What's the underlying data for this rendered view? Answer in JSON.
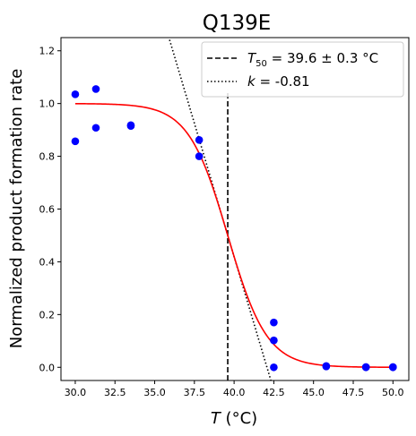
{
  "chart_data": {
    "type": "scatter",
    "title": "Q139E",
    "xlabel": {
      "var": "T",
      "unit": " (°C)"
    },
    "ylabel": "Normalized product formation rate",
    "xlim": [
      29.1,
      51.0
    ],
    "ylim": [
      -0.05,
      1.25
    ],
    "xticks": [
      30.0,
      32.5,
      35.0,
      37.5,
      40.0,
      42.5,
      45.0,
      47.5,
      50.0
    ],
    "xtick_labels": [
      "30.0",
      "32.5",
      "35.0",
      "37.5",
      "40.0",
      "42.5",
      "45.0",
      "47.5",
      "50.0"
    ],
    "yticks": [
      0.0,
      0.2,
      0.4,
      0.6,
      0.8,
      1.0,
      1.2
    ],
    "ytick_labels": [
      "0.0",
      "0.2",
      "0.4",
      "0.6",
      "0.8",
      "1.0",
      "1.2"
    ],
    "points": [
      {
        "x": 30.0,
        "y": 1.035
      },
      {
        "x": 30.0,
        "y": 0.857
      },
      {
        "x": 31.3,
        "y": 1.055
      },
      {
        "x": 31.3,
        "y": 0.908
      },
      {
        "x": 33.5,
        "y": 0.918
      },
      {
        "x": 33.5,
        "y": 0.915
      },
      {
        "x": 37.8,
        "y": 0.862
      },
      {
        "x": 37.8,
        "y": 0.8
      },
      {
        "x": 42.5,
        "y": 0.17
      },
      {
        "x": 42.5,
        "y": 0.102
      },
      {
        "x": 42.5,
        "y": 0.0
      },
      {
        "x": 45.8,
        "y": 0.005
      },
      {
        "x": 45.8,
        "y": 0.003
      },
      {
        "x": 48.3,
        "y": 0.001
      },
      {
        "x": 48.3,
        "y": 0.0
      },
      {
        "x": 50.0,
        "y": 0.0
      },
      {
        "x": 50.0,
        "y": 0.001
      }
    ],
    "point_color": "#0000ff",
    "fit": {
      "model": "sigmoid",
      "t50": 39.6,
      "k": -0.81,
      "color": "#ff0000"
    },
    "t50_line": {
      "x": 39.6,
      "y_top": 1.05
    },
    "tangent": {
      "x0": 39.6,
      "y0": 0.5,
      "slope": -0.2025
    },
    "legend": {
      "position": "top-right",
      "t50_entry": {
        "sym": "T",
        "sub": "50",
        "text": " = 39.6 ± 0.3 °C"
      },
      "k_entry": {
        "sym": "k",
        "text": " = -0.81"
      }
    }
  }
}
